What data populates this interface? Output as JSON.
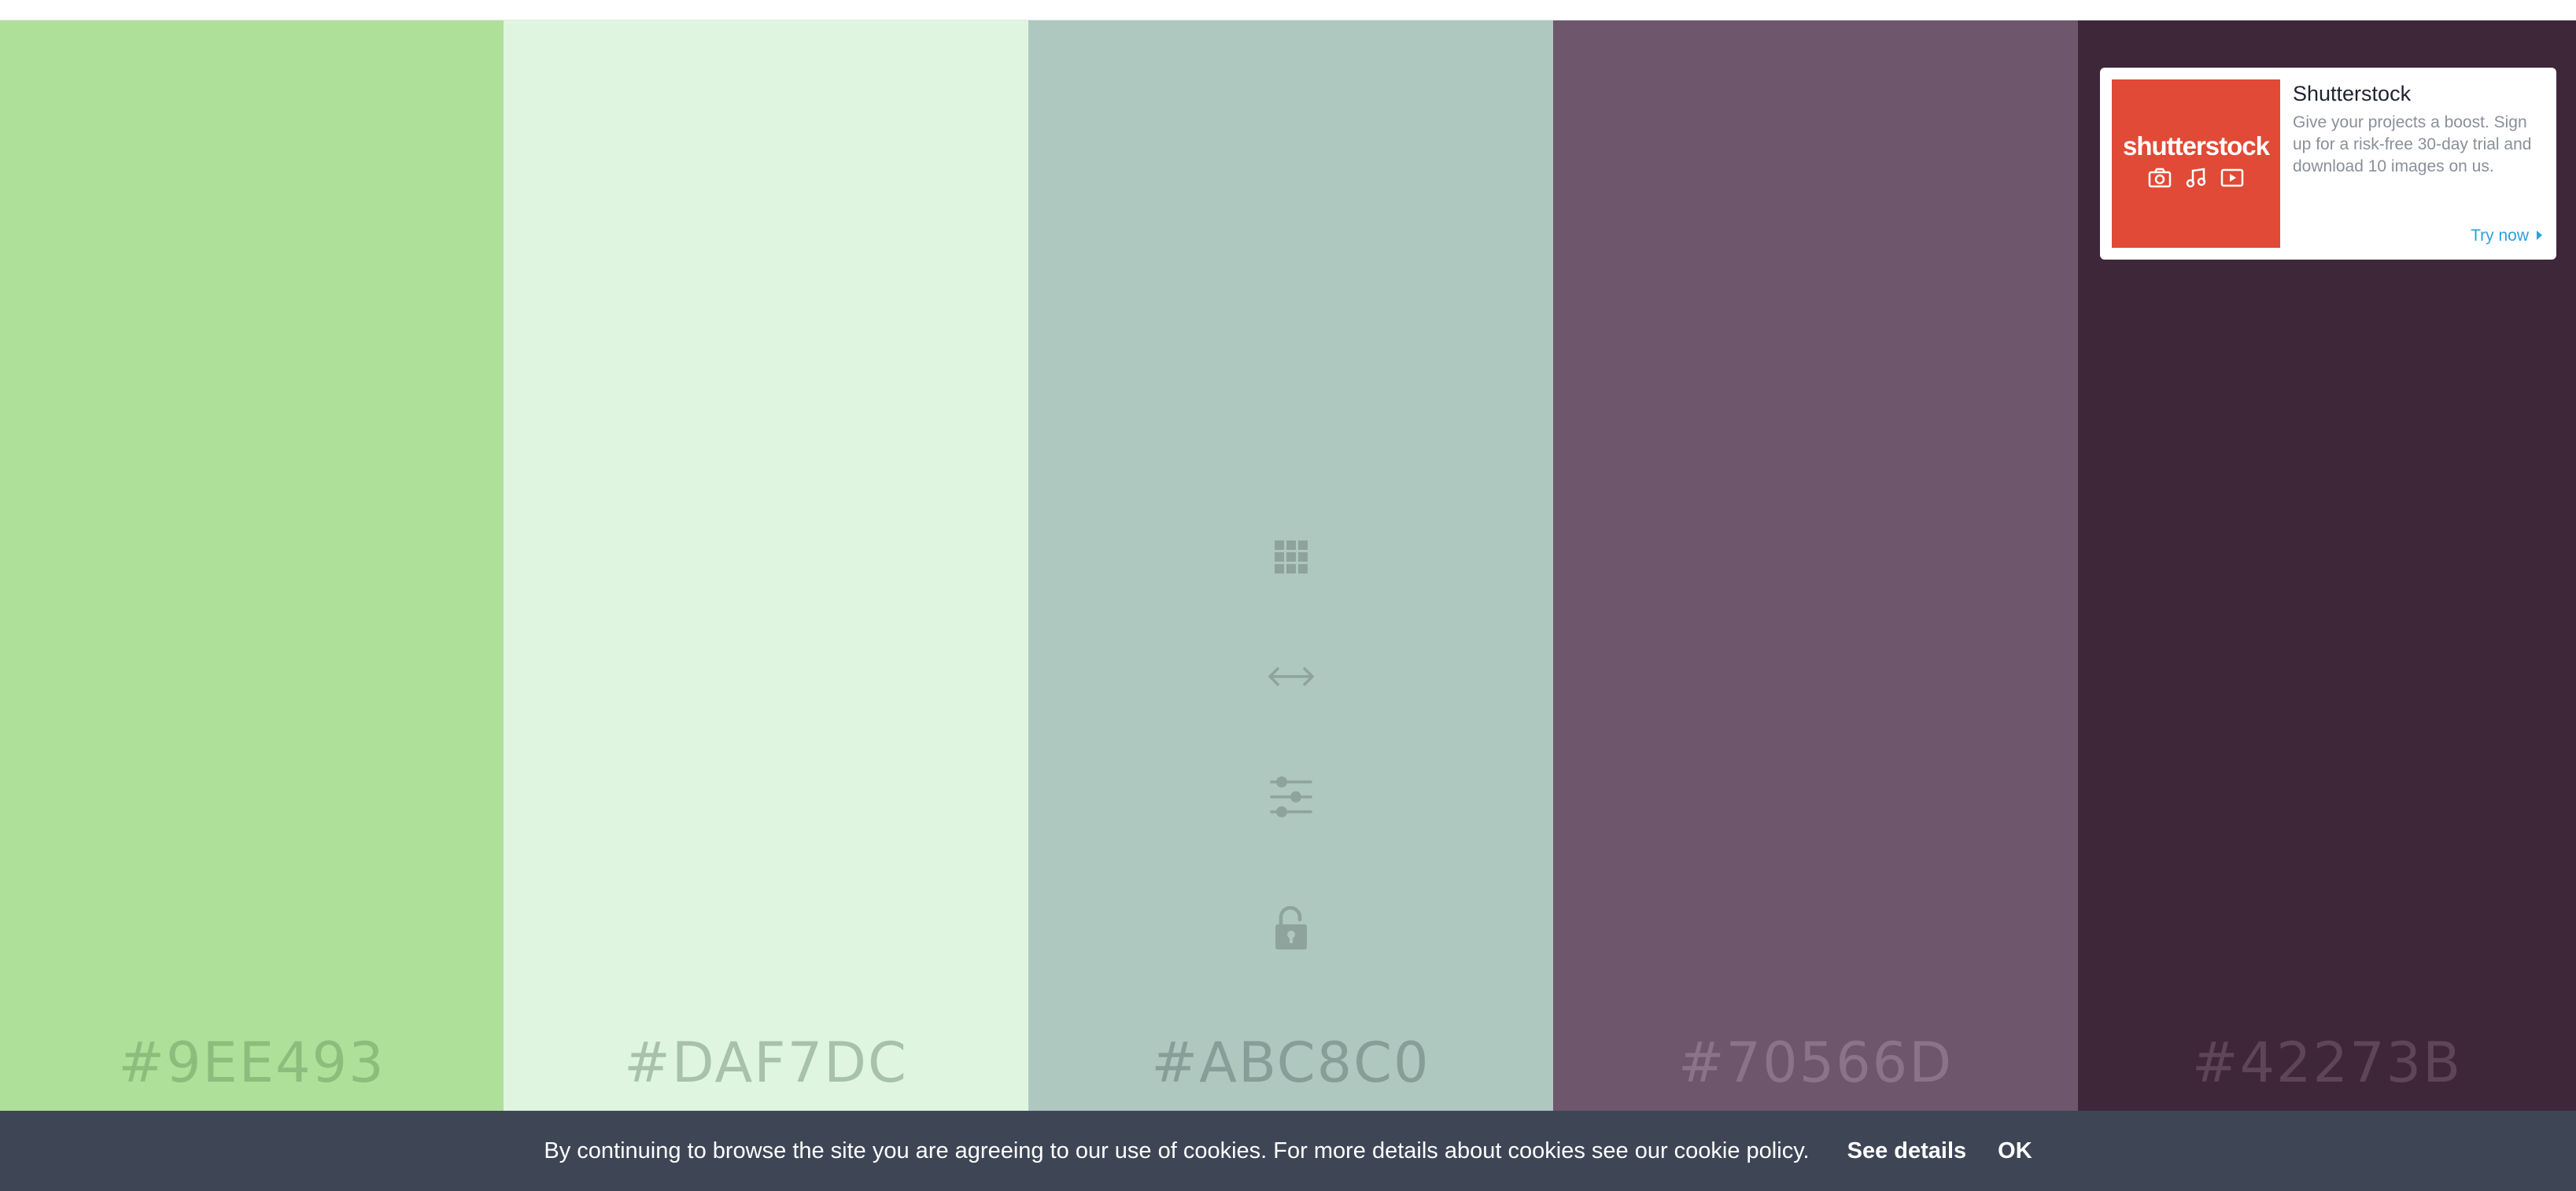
{
  "palette": {
    "colors": [
      {
        "hex": "#9EE493",
        "swatch_color": "#aee09a",
        "label_color": "#8bbd7c"
      },
      {
        "hex": "#DAF7DC",
        "swatch_color": "#dff5df",
        "label_color": "#a8c1ab"
      },
      {
        "hex": "#ABC8C0",
        "swatch_color": "#aec7bf",
        "label_color": "#879d97"
      },
      {
        "hex": "#70566D",
        "swatch_color": "#6e566d",
        "label_color": "#8b748a"
      },
      {
        "hex": "#42273B",
        "swatch_color": "#3e2739",
        "label_color": "#5e4558"
      }
    ],
    "tool_icons": [
      "grid-icon",
      "arrows-horizontal-icon",
      "sliders-icon",
      "unlock-icon"
    ],
    "tool_icon_color": "#8fa39d"
  },
  "ad": {
    "logo_text": "shutterstock",
    "logo_color": "#e04a36",
    "logo_icons": [
      "camera-icon",
      "music-icon",
      "video-icon"
    ],
    "title": "Shutterstock",
    "text": "Give your projects a boost. Sign up for a risk-free 30-day trial and download 10 images on us.",
    "cta": "Try now",
    "cta_color": "#2ba3d8"
  },
  "cookie_banner": {
    "message": "By continuing to browse the site you are agreeing to our use of cookies. For more details about cookies see our cookie policy.",
    "details_label": "See details",
    "ok_label": "OK",
    "background": "#3e4656"
  }
}
